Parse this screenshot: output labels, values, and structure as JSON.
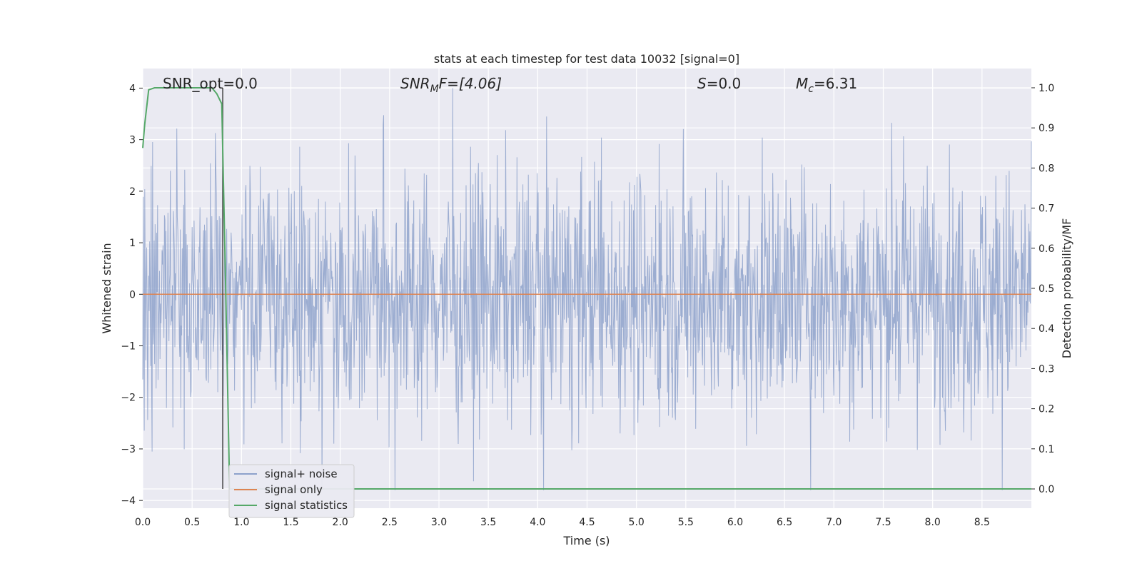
{
  "chart_data": {
    "type": "line",
    "title": "stats at each timestep for test data 10032 [signal=0]",
    "xlabel": "Time (s)",
    "ylabel_left": "Whitened strain",
    "ylabel_right": "Detection probability/MF",
    "xlim": [
      0,
      9
    ],
    "ylim_left": [
      -4.15,
      4.38
    ],
    "ylim_right": [
      -0.048,
      1.048
    ],
    "x_ticks": [
      "0.0",
      "0.5",
      "1.0",
      "1.5",
      "2.0",
      "2.5",
      "3.0",
      "3.5",
      "4.0",
      "4.5",
      "5.0",
      "5.5",
      "6.0",
      "6.5",
      "7.0",
      "7.5",
      "8.0",
      "8.5"
    ],
    "y_ticks_left": [
      "4",
      "3",
      "2",
      "1",
      "0",
      "−1",
      "−2",
      "−3",
      "−4"
    ],
    "y_ticks_right": [
      "1.0",
      "0.9",
      "0.8",
      "0.7",
      "0.6",
      "0.5",
      "0.4",
      "0.3",
      "0.2",
      "0.1",
      "0.0"
    ],
    "grid": true,
    "legend_position": "bottom-left",
    "annotations": {
      "snr_opt": "SNR_opt=0.0",
      "snr_mf_base": "SNR",
      "snr_mf_sub": "M",
      "snr_mf_rest": "F=[4.06]",
      "s_var": "S",
      "s_rest": "=0.0",
      "mc_base": "M",
      "mc_sub": "c",
      "mc_rest": "=6.31"
    },
    "vertical_marker_x": 0.81,
    "series": [
      {
        "name": "signal+ noise",
        "color": "#4c72b0",
        "axis": "left",
        "description_values": {
          "typical_range": [
            -1.5,
            1.5
          ],
          "max": 4.0,
          "min": -3.8
        }
      },
      {
        "name": "signal only",
        "color": "#dd8452",
        "axis": "left",
        "x": [
          0,
          9
        ],
        "values": [
          0,
          0
        ]
      },
      {
        "name": "signal statistics",
        "color": "#55a868",
        "axis": "right",
        "x": [
          0,
          0.02,
          0.06,
          0.12,
          0.3,
          0.5,
          0.6,
          0.7,
          0.75,
          0.8,
          0.84,
          0.88,
          1.0,
          2.0,
          4.0,
          6.0,
          8.0,
          9.0
        ],
        "values": [
          0.85,
          0.91,
          0.995,
          1.0,
          1.0,
          1.0,
          1.0,
          1.0,
          0.985,
          0.96,
          0.5,
          0.0,
          0.0,
          0.0,
          0.0,
          0.0,
          0.0,
          0.0
        ]
      }
    ]
  }
}
